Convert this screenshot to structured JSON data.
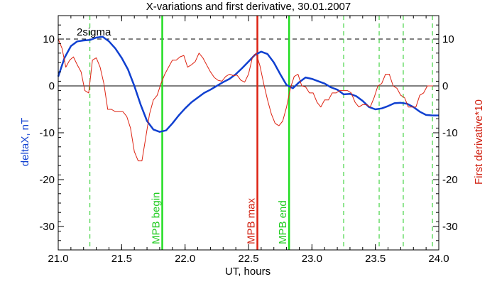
{
  "chart_data": {
    "type": "line",
    "title": "X-variations and first derivative, 30.01.2007",
    "xlabel": "UT, hours",
    "ylabel_left": "deltaX, nT",
    "ylabel_right": "First derivative*10",
    "xlim": [
      21.0,
      24.0
    ],
    "ylim": [
      -35,
      15
    ],
    "x_ticks": [
      "21.0",
      "21.5",
      "22.0",
      "22.5",
      "23.0",
      "23.5",
      "24.0"
    ],
    "x_tick_values": [
      21.0,
      21.5,
      22.0,
      22.5,
      23.0,
      23.5,
      24.0
    ],
    "y_ticks": [
      "10",
      "0",
      "-10",
      "-20",
      "-30"
    ],
    "y_tick_values": [
      10,
      0,
      -10,
      -20,
      -30
    ],
    "hlines": [
      {
        "y": 10,
        "style": "dashed",
        "color": "#000000",
        "label": "2sigma"
      },
      {
        "y": 0,
        "style": "solid",
        "color": "#000000"
      }
    ],
    "vlines": [
      {
        "x": 21.82,
        "style": "solid",
        "color": "#22dd22",
        "label": "MPB begin"
      },
      {
        "x": 22.57,
        "style": "solid",
        "color": "#dd2211",
        "label": "MPB max"
      },
      {
        "x": 22.82,
        "style": "solid",
        "color": "#22dd22",
        "label": "MPB end"
      },
      {
        "x": 21.25,
        "style": "dashed",
        "color": "#22cc22"
      },
      {
        "x": 23.25,
        "style": "dashed",
        "color": "#22cc22"
      },
      {
        "x": 23.53,
        "style": "dashed",
        "color": "#22cc22"
      },
      {
        "x": 23.72,
        "style": "dashed",
        "color": "#22cc22"
      },
      {
        "x": 23.95,
        "style": "dashed",
        "color": "#22cc22"
      }
    ],
    "series": [
      {
        "key": "deltax",
        "color": "#1040d0",
        "x": [
          21.0,
          21.05,
          21.1,
          21.15,
          21.2,
          21.25,
          21.3,
          21.35,
          21.4,
          21.45,
          21.5,
          21.55,
          21.6,
          21.65,
          21.7,
          21.75,
          21.8,
          21.85,
          21.9,
          21.95,
          22.0,
          22.05,
          22.1,
          22.15,
          22.2,
          22.25,
          22.3,
          22.35,
          22.4,
          22.45,
          22.5,
          22.55,
          22.6,
          22.65,
          22.7,
          22.75,
          22.8,
          22.85,
          22.9,
          22.95,
          23.0,
          23.05,
          23.1,
          23.15,
          23.2,
          23.25,
          23.3,
          23.35,
          23.4,
          23.45,
          23.5,
          23.55,
          23.6,
          23.65,
          23.7,
          23.75,
          23.8,
          23.85,
          23.9,
          23.95,
          24.0
        ],
        "y": [
          2,
          6,
          8.5,
          9.5,
          9.7,
          9.8,
          10.3,
          10.5,
          9.5,
          8,
          6,
          3.5,
          0,
          -4,
          -7.5,
          -9.3,
          -9.8,
          -9.5,
          -8,
          -6.3,
          -4.8,
          -3.5,
          -2.5,
          -1.5,
          -0.8,
          0,
          0.8,
          1.5,
          2.5,
          3.8,
          5.2,
          6.6,
          7.3,
          6.8,
          5,
          2.5,
          0.2,
          -0.5,
          0.8,
          1.8,
          1.5,
          1,
          0.5,
          -0.3,
          -0.8,
          -1.8,
          -1.7,
          -2.2,
          -3.2,
          -4.5,
          -5,
          -4.8,
          -4.3,
          -3.7,
          -3.6,
          -3.8,
          -4.5,
          -5.5,
          -6.2,
          -6.3,
          -6.3
        ]
      },
      {
        "key": "derivative",
        "color": "#dd2211",
        "x": [
          21.0,
          21.03,
          21.06,
          21.09,
          21.12,
          21.15,
          21.18,
          21.21,
          21.24,
          21.27,
          21.3,
          21.33,
          21.36,
          21.39,
          21.42,
          21.45,
          21.48,
          21.51,
          21.54,
          21.57,
          21.6,
          21.63,
          21.66,
          21.69,
          21.72,
          21.75,
          21.78,
          21.81,
          21.84,
          21.87,
          21.9,
          21.93,
          21.96,
          21.99,
          22.02,
          22.05,
          22.08,
          22.11,
          22.14,
          22.17,
          22.2,
          22.23,
          22.26,
          22.29,
          22.32,
          22.35,
          22.38,
          22.41,
          22.44,
          22.47,
          22.5,
          22.53,
          22.56,
          22.59,
          22.62,
          22.65,
          22.68,
          22.71,
          22.74,
          22.77,
          22.8,
          22.83,
          22.86,
          22.89,
          22.92,
          22.95,
          22.98,
          23.01,
          23.04,
          23.07,
          23.1,
          23.13,
          23.16,
          23.19,
          23.22,
          23.25,
          23.28,
          23.31,
          23.34,
          23.37,
          23.4,
          23.43,
          23.46,
          23.49,
          23.52,
          23.55,
          23.58,
          23.61,
          23.64,
          23.67,
          23.7,
          23.73,
          23.76,
          23.79,
          23.82,
          23.85,
          23.88,
          23.91,
          23.94,
          23.97,
          24.0
        ],
        "y": [
          10,
          8,
          4,
          5.5,
          6.2,
          4.5,
          3,
          -1,
          -1.5,
          5.5,
          6,
          4,
          0.5,
          -5,
          -5,
          -5.5,
          -5.5,
          -5.5,
          -6.5,
          -9,
          -14,
          -16,
          -16,
          -11,
          -6,
          -3,
          -2,
          0.5,
          2.5,
          4,
          5.5,
          5.5,
          6.2,
          6.5,
          4,
          4.5,
          5.2,
          7,
          6,
          4.5,
          3,
          1.8,
          1.2,
          1,
          2,
          2.5,
          2.2,
          2.3,
          1.2,
          0.8,
          2.5,
          6,
          7,
          4.3,
          0.5,
          -3,
          -6,
          -8,
          -8.5,
          -7.5,
          -4.5,
          -0.5,
          2,
          2.5,
          0,
          -0.2,
          -1.5,
          -1.5,
          -3.5,
          -4.5,
          -3,
          -3,
          -1.5,
          -1.5,
          -1,
          -1,
          -1,
          -1.5,
          -3.5,
          -4.5,
          -4,
          -4,
          -4.5,
          -2.5,
          0,
          0.5,
          2.5,
          2.5,
          0,
          -0.5,
          -2,
          -2.5,
          -4.5,
          -4.5,
          -4.5,
          -2,
          -1.5,
          0,
          0,
          0,
          0
        ]
      }
    ]
  }
}
